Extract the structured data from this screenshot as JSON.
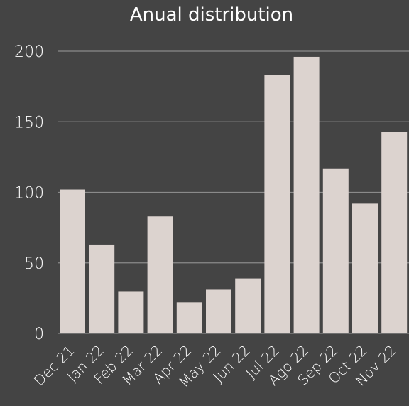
{
  "colors": {
    "background": "#444444",
    "bar": "#dcd3cf",
    "grid": "#8a8a8a",
    "text": "#ffffff"
  },
  "chart_data": {
    "type": "bar",
    "title": "Anual distribution",
    "xlabel": "",
    "ylabel": "",
    "categories": [
      "Dec 21",
      "Jan 22",
      "Feb 22",
      "Mar 22",
      "Apr 22",
      "May 22",
      "Jun 22",
      "Jul 22",
      "Ago 22",
      "Sep 22",
      "Oct 22",
      "Nov 22"
    ],
    "values": [
      102,
      63,
      30,
      83,
      22,
      31,
      39,
      183,
      196,
      117,
      92,
      143
    ],
    "ylim": [
      0,
      200
    ],
    "yticks": [
      "0",
      "50",
      "100",
      "150",
      "200"
    ],
    "grid": true,
    "legend": "none"
  }
}
